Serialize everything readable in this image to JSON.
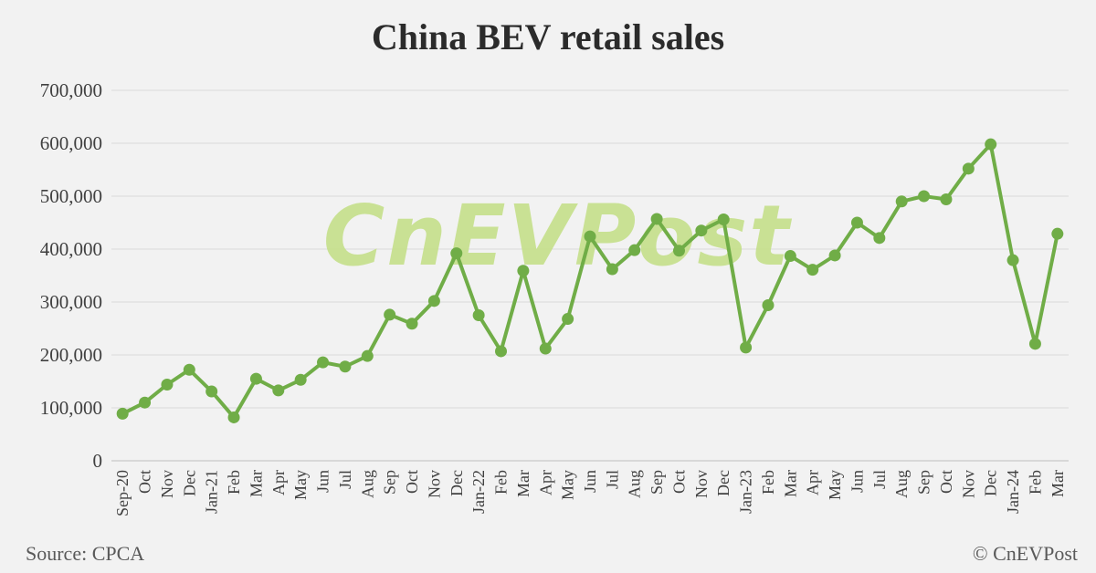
{
  "chart_data": {
    "type": "line",
    "title": "China BEV retail sales",
    "xlabel": "",
    "ylabel": "",
    "ylim": [
      0,
      700000
    ],
    "yticks": [
      "0",
      "100,000",
      "200,000",
      "300,000",
      "400,000",
      "500,000",
      "600,000",
      "700,000"
    ],
    "grid": true,
    "categories": [
      "Sep-20",
      "Oct",
      "Nov",
      "Dec",
      "Jan-21",
      "Feb",
      "Mar",
      "Apr",
      "May",
      "Jun",
      "Jul",
      "Aug",
      "Sep",
      "Oct",
      "Nov",
      "Dec",
      "Jan-22",
      "Feb",
      "Mar",
      "Apr",
      "May",
      "Jun",
      "Jul",
      "Aug",
      "Sep",
      "Oct",
      "Nov",
      "Dec",
      "Jan-23",
      "Feb",
      "Mar",
      "Apr",
      "May",
      "Jun",
      "Jul",
      "Aug",
      "Sep",
      "Oct",
      "Nov",
      "Dec",
      "Jan-24",
      "Feb",
      "Mar"
    ],
    "series": [
      {
        "color": "#70ad47",
        "values": [
          89000,
          110000,
          144000,
          172000,
          131000,
          82000,
          155000,
          133000,
          153000,
          186000,
          178000,
          198000,
          276000,
          259000,
          302000,
          392000,
          275000,
          207000,
          359000,
          212000,
          268000,
          424000,
          362000,
          398000,
          457000,
          397000,
          435000,
          456000,
          214000,
          294000,
          387000,
          361000,
          388000,
          450000,
          421000,
          490000,
          500000,
          494000,
          552000,
          598000,
          379000,
          221000,
          429000
        ]
      }
    ]
  },
  "watermark": "CnEVPost",
  "footer": {
    "source": "Source: CPCA",
    "copyright": "© CnEVPost"
  }
}
